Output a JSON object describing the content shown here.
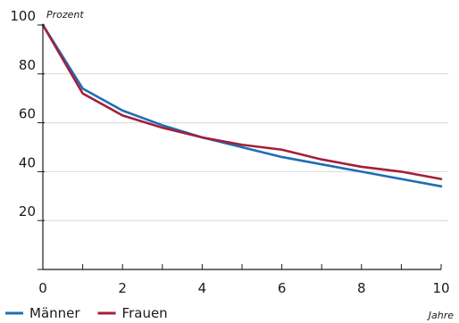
{
  "chart_data": {
    "type": "line",
    "title": "",
    "xlabel": "Jahre",
    "ylabel": "Prozent",
    "x": [
      0,
      1,
      2,
      3,
      4,
      5,
      6,
      7,
      8,
      9,
      10
    ],
    "xlim": [
      0,
      10
    ],
    "ylim": [
      0,
      100
    ],
    "x_tick_labels": [
      "0",
      "2",
      "4",
      "6",
      "8",
      "10"
    ],
    "y_tick_labels": [
      "20",
      "40",
      "60",
      "80",
      "100"
    ],
    "grid": "horizontal",
    "legend_position": "bottom-left",
    "series": [
      {
        "name": "Männer",
        "color": "#1f6db3",
        "values": [
          100,
          74,
          65,
          59,
          54,
          50,
          46,
          43,
          40,
          37,
          34
        ]
      },
      {
        "name": "Frauen",
        "color": "#a31f3a",
        "values": [
          100,
          72,
          63,
          58,
          54,
          51,
          49,
          45,
          42,
          40,
          37
        ]
      }
    ]
  }
}
